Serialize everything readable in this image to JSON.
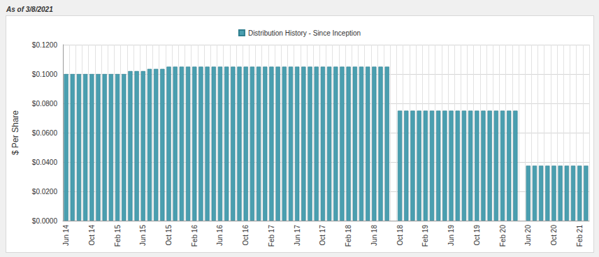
{
  "chart_data": {
    "type": "bar",
    "subtitle": "As of 3/8/2021",
    "y_label": "$ Per Share",
    "categories": [
      "Jun 14",
      null,
      null,
      null,
      "Oct 14",
      null,
      null,
      null,
      "Feb 15",
      null,
      null,
      null,
      "Jun 15",
      null,
      null,
      null,
      "Oct 15",
      null,
      null,
      null,
      "Feb 16",
      null,
      null,
      null,
      "Jun 16",
      null,
      null,
      null,
      "Oct 16",
      null,
      null,
      null,
      "Feb 17",
      null,
      null,
      null,
      "Jun 17",
      null,
      null,
      null,
      "Oct 17",
      null,
      null,
      null,
      "Feb 18",
      null,
      null,
      null,
      "Jun 18",
      null,
      null,
      null,
      "Oct 18",
      null,
      null,
      null,
      "Feb 19",
      null,
      null,
      null,
      "Jun 19",
      null,
      null,
      null,
      "Oct 19",
      null,
      null,
      null,
      "Feb 20",
      null,
      null,
      null,
      "Jun 20",
      null,
      null,
      null,
      "Oct 20",
      null,
      null,
      null,
      "Feb 21",
      null
    ],
    "series": [
      {
        "name": "Distribution History - Since Inception",
        "color": "#4a9fb0",
        "values": [
          0.1,
          0.1,
          0.1,
          0.1,
          0.1,
          0.1,
          0.1,
          0.1,
          0.1,
          0.1,
          0.102,
          0.102,
          0.102,
          0.1035,
          0.1035,
          0.1035,
          0.105,
          0.105,
          0.105,
          0.105,
          0.105,
          0.105,
          0.105,
          0.105,
          0.105,
          0.105,
          0.105,
          0.105,
          0.105,
          0.105,
          0.105,
          0.105,
          0.105,
          0.105,
          0.105,
          0.105,
          0.105,
          0.105,
          0.105,
          0.105,
          0.105,
          0.105,
          0.105,
          0.105,
          0.105,
          0.105,
          0.105,
          0.105,
          0.105,
          0.105,
          0.105,
          null,
          0.075,
          0.075,
          0.075,
          0.075,
          0.075,
          0.075,
          0.075,
          0.075,
          0.075,
          0.075,
          0.075,
          0.075,
          0.075,
          0.075,
          0.075,
          0.075,
          0.075,
          0.075,
          0.075,
          null,
          0.0375,
          0.0375,
          0.0375,
          0.0375,
          0.0375,
          0.0375,
          0.0375,
          0.0375,
          0.0375,
          0.0375
        ]
      }
    ],
    "ylim": [
      0,
      0.12
    ],
    "yticks": [
      {
        "value": 0,
        "label": "$0.0000"
      },
      {
        "value": 0.02,
        "label": "$0.0200"
      },
      {
        "value": 0.04,
        "label": "$0.0400"
      },
      {
        "value": 0.06,
        "label": "$0.0600"
      },
      {
        "value": 0.08,
        "label": "$0.0800"
      },
      {
        "value": 0.1,
        "label": "$0.1000"
      },
      {
        "value": 0.12,
        "label": "$0.1200"
      }
    ],
    "grid": true,
    "legend": "top"
  }
}
